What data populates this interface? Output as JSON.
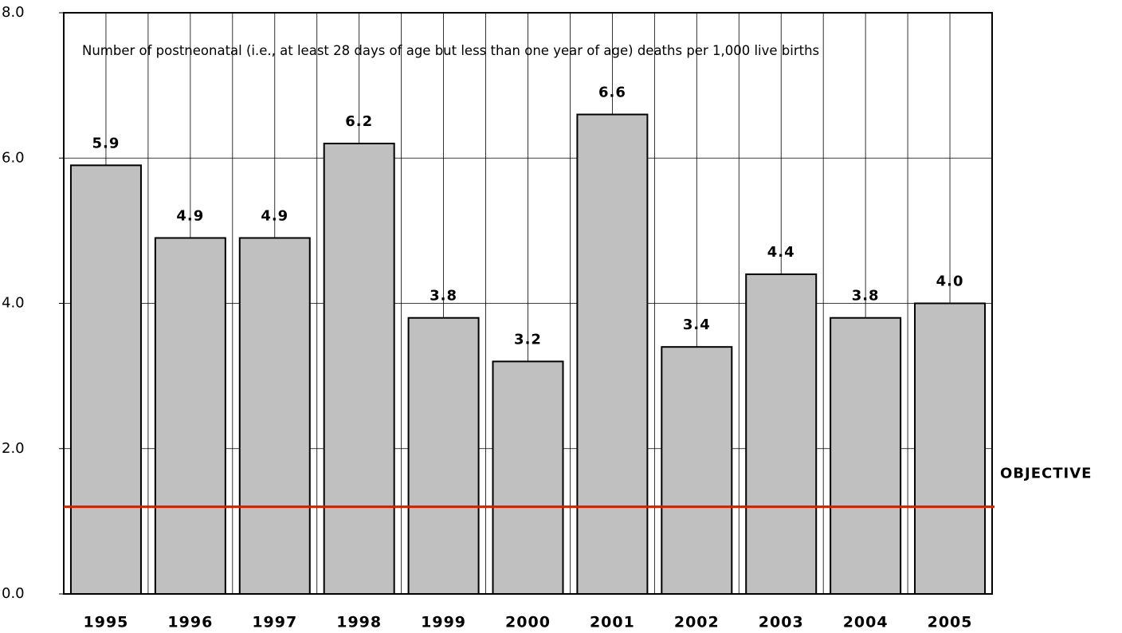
{
  "chart_data": {
    "type": "bar",
    "annotation": "Number of postneonatal (i.e., at least 28 days of age but less than one year of age) deaths per 1,000 live births",
    "categories": [
      "1995",
      "1996",
      "1997",
      "1998",
      "1999",
      "2000",
      "2001",
      "2002",
      "2003",
      "2004",
      "2005"
    ],
    "values": [
      5.9,
      4.9,
      4.9,
      6.2,
      3.8,
      3.2,
      6.6,
      3.4,
      4.4,
      3.8,
      4.0
    ],
    "value_labels": [
      "5.9",
      "4.9",
      "4.9",
      "6.2",
      "3.8",
      "3.2",
      "6.6",
      "3.4",
      "4.4",
      "3.8",
      "4.0"
    ],
    "color": "#c0c0c0",
    "ylim": [
      0,
      8
    ],
    "yticks": [
      {
        "value": 0,
        "label": "0.0"
      },
      {
        "value": 2,
        "label": "2.0"
      },
      {
        "value": 4,
        "label": "4.0"
      },
      {
        "value": 6,
        "label": "6.0"
      },
      {
        "value": 8,
        "label": "8.0"
      }
    ],
    "grid": true,
    "objective": {
      "label": "OBJECTIVE",
      "value": 1.2,
      "color": "#c0280a"
    }
  }
}
